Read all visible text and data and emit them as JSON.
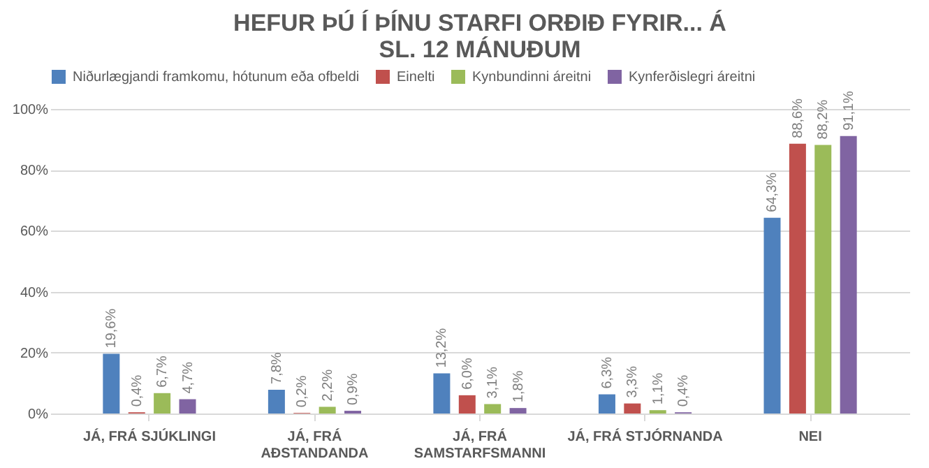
{
  "chart_data": {
    "type": "bar",
    "title": "HEFUR ÞÚ Í ÞÍNU STARFI ORÐIÐ FYRIR... Á SL. 12 MÁNUÐUM",
    "categories": [
      "JÁ, FRÁ SJÚKLINGI",
      "JÁ, FRÁ AÐSTANDANDA",
      "JÁ, FRÁ SAMSTARFSMANNI",
      "JÁ, FRÁ STJÓRNANDA",
      "NEI"
    ],
    "series": [
      {
        "name": "Niðurlægjandi framkomu, hótunum eða ofbeldi",
        "color": "#4f81bd",
        "values": [
          19.6,
          7.8,
          13.2,
          6.3,
          64.3
        ],
        "value_labels": [
          "19,6%",
          "7,8%",
          "13,2%",
          "6,3%",
          "64,3%"
        ]
      },
      {
        "name": "Einelti",
        "color": "#c0504d",
        "values": [
          0.4,
          0.2,
          6.0,
          3.3,
          88.6
        ],
        "value_labels": [
          "0,4%",
          "0,2%",
          "6,0%",
          "3,3%",
          "88,6%"
        ]
      },
      {
        "name": "Kynbundinni áreitni",
        "color": "#9bbb59",
        "values": [
          6.7,
          2.2,
          3.1,
          1.1,
          88.2
        ],
        "value_labels": [
          "6,7%",
          "2,2%",
          "3,1%",
          "1,1%",
          "88,2%"
        ]
      },
      {
        "name": "Kynferðislegri áreitni",
        "color": "#8064a2",
        "values": [
          4.7,
          0.9,
          1.8,
          0.4,
          91.1
        ],
        "value_labels": [
          "4,7%",
          "0,9%",
          "1,8%",
          "0,4%",
          "91,1%"
        ]
      }
    ],
    "ylim": [
      0,
      100
    ],
    "yticks": [
      {
        "value": 0,
        "label": "0%"
      },
      {
        "value": 20,
        "label": "20%"
      },
      {
        "value": 40,
        "label": "40%"
      },
      {
        "value": 60,
        "label": "60%"
      },
      {
        "value": 80,
        "label": "80%"
      },
      {
        "value": 100,
        "label": "100%"
      }
    ],
    "grid": "y",
    "legend": "top"
  }
}
